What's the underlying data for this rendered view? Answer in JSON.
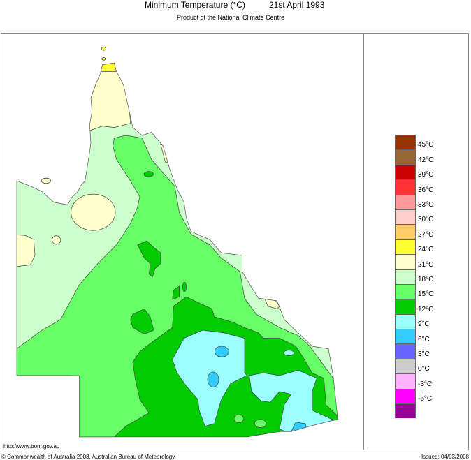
{
  "header": {
    "title": "Minimum Temperature (°C)",
    "date": "21st April 1993",
    "subtitle": "Product of the National Climate Centre"
  },
  "legend": {
    "colors": [
      "#993300",
      "#996633",
      "#cc0000",
      "#ff3333",
      "#ff9999",
      "#ffcccc",
      "#ffcc66",
      "#ffff33",
      "#ffffcc",
      "#ccffcc",
      "#66ff66",
      "#00cc00",
      "#99ffff",
      "#33ccff",
      "#6666ff",
      "#cccccc",
      "#ffb3ff",
      "#ff00ff",
      "#990099"
    ],
    "labels": [
      "45°C",
      "42°C",
      "39°C",
      "36°C",
      "33°C",
      "30°C",
      "27°C",
      "24°C",
      "21°C",
      "18°C",
      "15°C",
      "12°C",
      "9°C",
      "6°C",
      "3°C",
      "0°C",
      "-3°C",
      "-6°C"
    ]
  },
  "map": {
    "region": "Queensland",
    "zone_colors": {
      "24-27": "#ffff33",
      "21-24": "#ffffcc",
      "18-21": "#ccffcc",
      "15-18": "#66ff66",
      "12-15": "#00cc00",
      "9-12": "#99ffff",
      "6-9": "#33ccff"
    }
  },
  "footer": {
    "url": "http://www.bom.gov.au",
    "copyright": "© Commonwealth of Australia 2008, Australian Bureau of Meteorology",
    "issued": "Issued: 04/03/2008"
  }
}
